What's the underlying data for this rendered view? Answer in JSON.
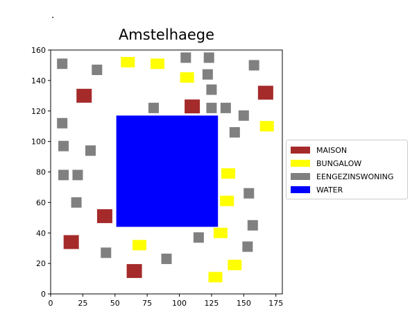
{
  "stray_mark": ".",
  "chart_data": {
    "type": "scatter",
    "title": "Amstelhaege",
    "xlabel": "",
    "ylabel": "",
    "xlim": [
      0,
      180
    ],
    "ylim": [
      0,
      160
    ],
    "xticks": [
      0,
      25,
      50,
      75,
      100,
      125,
      150,
      175
    ],
    "yticks": [
      0,
      20,
      40,
      60,
      80,
      100,
      120,
      140,
      160
    ],
    "grid": false,
    "legend_position": "right",
    "colors": {
      "MAISON": "#a52a2a",
      "BUNGALOW": "#ffff00",
      "EENGEZINSWONING": "#808080",
      "WATER": "#0000ff"
    },
    "series": [
      {
        "name": "MAISON",
        "color": "#a52a2a",
        "points": [
          [
            26,
            130
          ],
          [
            16,
            34
          ],
          [
            42,
            51
          ],
          [
            65,
            15
          ],
          [
            110,
            123
          ],
          [
            167,
            132
          ]
        ]
      },
      {
        "name": "BUNGALOW",
        "color": "#ffff00",
        "points": [
          [
            60,
            152
          ],
          [
            83,
            151
          ],
          [
            106,
            142
          ],
          [
            69,
            32
          ],
          [
            138,
            79
          ],
          [
            137,
            61
          ],
          [
            132,
            40
          ],
          [
            143,
            19
          ],
          [
            128,
            11
          ],
          [
            168,
            110
          ]
        ]
      },
      {
        "name": "EENGEZINSWONING",
        "color": "#808080",
        "points": [
          [
            9,
            151
          ],
          [
            36,
            147
          ],
          [
            105,
            155
          ],
          [
            123,
            155
          ],
          [
            122,
            144
          ],
          [
            125,
            134
          ],
          [
            158,
            150
          ],
          [
            80,
            122
          ],
          [
            125,
            122
          ],
          [
            136,
            122
          ],
          [
            150,
            117
          ],
          [
            143,
            106
          ],
          [
            9,
            112
          ],
          [
            10,
            97
          ],
          [
            31,
            94
          ],
          [
            10,
            78
          ],
          [
            21,
            78
          ],
          [
            20,
            60
          ],
          [
            154,
            66
          ],
          [
            157,
            45
          ],
          [
            115,
            37
          ],
          [
            153,
            31
          ],
          [
            43,
            27
          ],
          [
            90,
            23
          ]
        ]
      },
      {
        "name": "WATER",
        "color": "#0000ff",
        "rect": {
          "x0": 51,
          "x1": 130,
          "y0": 44,
          "y1": 117
        }
      }
    ]
  }
}
